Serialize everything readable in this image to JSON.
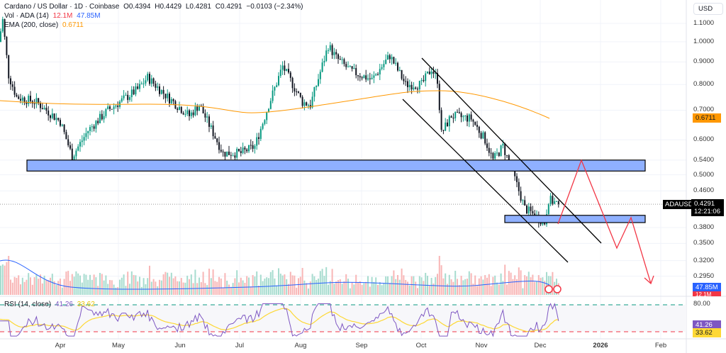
{
  "header": {
    "title": "Cardano / US Dollar · 1D · Coinbase",
    "open": "O0.4394",
    "high": "H0.4429",
    "low": "L0.4281",
    "close": "C0.4291",
    "change": "−0.0103 (−2.34%)"
  },
  "volume_legend": {
    "label": "Vol · ADA (14)",
    "value1": "12.1M",
    "value2": "47.85M"
  },
  "ema_legend": {
    "label": "EMA (200, close)",
    "value": "0.6711"
  },
  "rsi_legend": {
    "label": "RSI (14, close)",
    "value1": "41.26",
    "value2": "33.62"
  },
  "currency": "USD",
  "price_axis": [
    "1.1000",
    "1.0000",
    "0.9000",
    "0.8000",
    "0.7000",
    "0.6000",
    "0.5400",
    "0.5000",
    "0.4600",
    "0.3800",
    "0.3500",
    "0.3200",
    "0.2950"
  ],
  "tags": {
    "ema": "0.6711",
    "symbol": "ADAUSD",
    "price": "0.4291",
    "countdown": "12:21:06",
    "vol_ma": "47.85M",
    "vol": "12.1M",
    "rsi_level": "80.00",
    "rsi": "41.26",
    "rsi_ma": "33.62"
  },
  "date_axis": [
    "Apr",
    "May",
    "Jun",
    "Jul",
    "Aug",
    "Sep",
    "Oct",
    "Nov",
    "Dec",
    "2026",
    "Feb"
  ],
  "colors": {
    "up": "#089981",
    "down": "#131722",
    "ema": "#ff9800",
    "zone": "#8fb0ff",
    "projection": "#f23645",
    "rsi": "#7e57c2",
    "rsi_ma": "#fdd835",
    "vol_ma": "#2962ff"
  },
  "price_path": [
    [
      "Mar 1",
      1.0
    ],
    [
      "Mar 3",
      1.12
    ],
    [
      "Mar 6",
      0.84
    ],
    [
      "Mar 10",
      0.75
    ],
    [
      "Mar 20",
      0.73
    ],
    [
      "Apr 1",
      0.66
    ],
    [
      "Apr 7",
      0.55
    ],
    [
      "Apr 15",
      0.63
    ],
    [
      "Apr 25",
      0.7
    ],
    [
      "May 10",
      0.78
    ],
    [
      "May 15",
      0.83
    ],
    [
      "May 25",
      0.75
    ],
    [
      "Jun 5",
      0.68
    ],
    [
      "Jun 10",
      0.72
    ],
    [
      "Jun 22",
      0.56
    ],
    [
      "Jul 1",
      0.56
    ],
    [
      "Jul 8",
      0.58
    ],
    [
      "Jul 15",
      0.72
    ],
    [
      "Jul 22",
      0.88
    ],
    [
      "Aug 1",
      0.73
    ],
    [
      "Aug 5",
      0.72
    ],
    [
      "Aug 14",
      0.98
    ],
    [
      "Aug 18",
      0.92
    ],
    [
      "Aug 25",
      0.86
    ],
    [
      "Sep 5",
      0.82
    ],
    [
      "Sep 14",
      0.93
    ],
    [
      "Sep 22",
      0.8
    ],
    [
      "Sep 30",
      0.8
    ],
    [
      "Oct 5",
      0.87
    ],
    [
      "Oct 8",
      0.82
    ],
    [
      "Oct 10",
      0.62
    ],
    [
      "Oct 15",
      0.68
    ],
    [
      "Oct 25",
      0.67
    ],
    [
      "Nov 1",
      0.6
    ],
    [
      "Nov 5",
      0.54
    ],
    [
      "Nov 10",
      0.58
    ],
    [
      "Nov 14",
      0.52
    ],
    [
      "Nov 21",
      0.42
    ],
    [
      "Dec 1",
      0.39
    ],
    [
      "Dec 3",
      0.44
    ],
    [
      "Dec 8",
      0.4291
    ]
  ],
  "zones": [
    {
      "from": 0.51,
      "to": 0.54
    },
    {
      "from": 0.39,
      "to": 0.405
    }
  ],
  "rsi_levels": [
    80,
    30
  ]
}
